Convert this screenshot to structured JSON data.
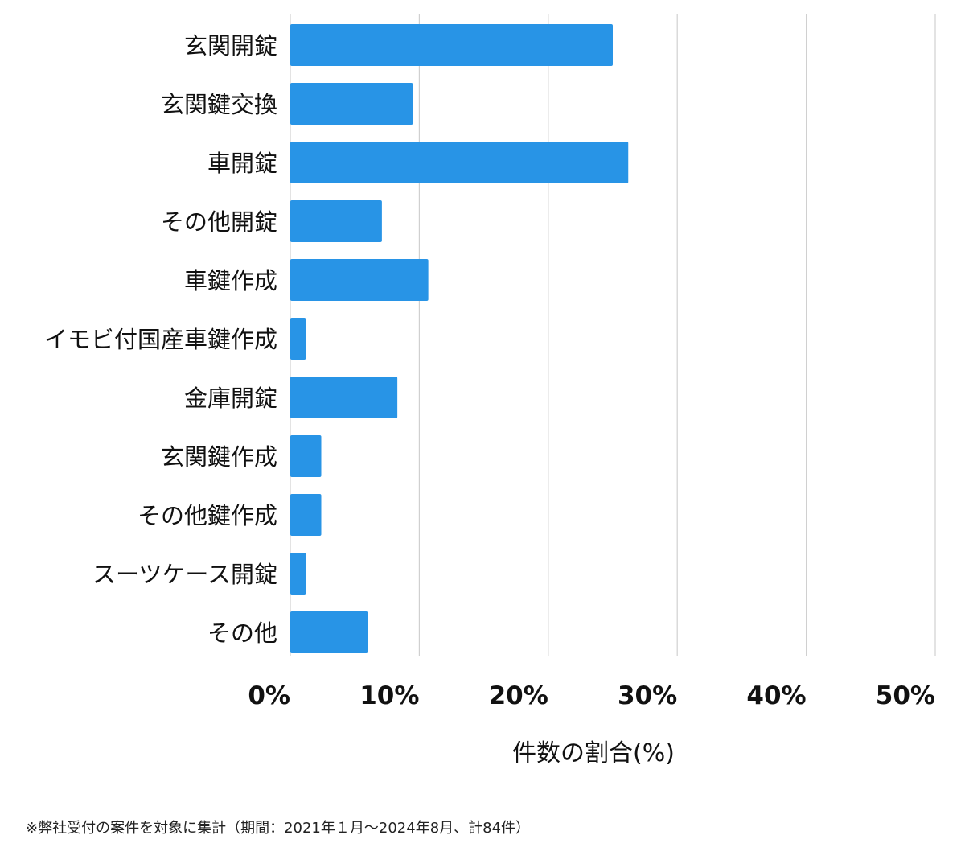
{
  "chart_data": {
    "type": "bar",
    "orientation": "horizontal",
    "categories": [
      "玄関開錠",
      "玄関鍵交換",
      "車開錠",
      "その他開錠",
      "車鍵作成",
      "イモビ付国産車鍵作成",
      "金庫開錠",
      "玄関鍵作成",
      "その他鍵作成",
      "スーツケース開錠",
      "その他"
    ],
    "values": [
      25,
      9.5,
      26.2,
      7.1,
      10.7,
      1.2,
      8.3,
      2.4,
      2.4,
      1.2,
      6.0
    ],
    "xlabel": "件数の割合(%)",
    "xlim": [
      0,
      50
    ],
    "x_ticks": [
      0,
      10,
      20,
      30,
      40,
      50
    ],
    "x_tick_labels": [
      "0%",
      "10%",
      "20%",
      "30%",
      "40%",
      "50%"
    ],
    "grid": "vertical",
    "bar_color": "#2894e6",
    "grid_color": "#d0d0d0"
  },
  "footnote": "※弊社受付の案件を対象に集計（期間：2021年１月〜2024年8月、計84件）"
}
